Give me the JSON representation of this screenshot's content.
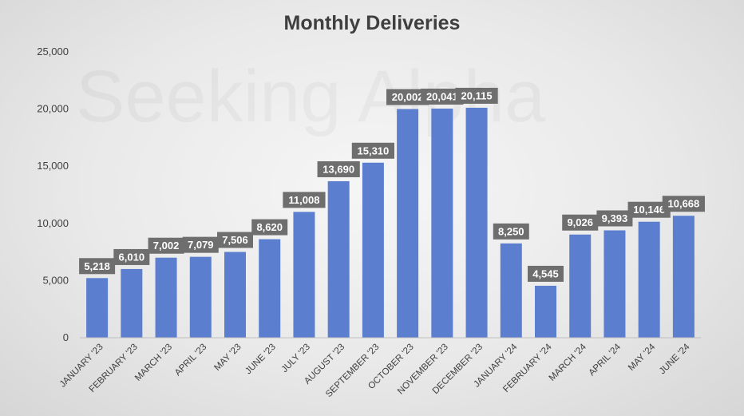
{
  "chart_data": {
    "type": "bar",
    "title": "Monthly Deliveries",
    "xlabel": "",
    "ylabel": "",
    "categories": [
      "JANUARY '23",
      "FEBRUARY '23",
      "MARCH '23",
      "APRIL '23",
      "MAY '23",
      "JUNE '23",
      "JULY '23",
      "AUGUST '23",
      "SEPTEMBER '23",
      "OCTOBER '23",
      "NOVEMBER '23",
      "DECEMBER '23",
      "JANUARY '24",
      "FEBRUARY '24",
      "MARCH '24",
      "APRIL '24",
      "MAY '24",
      "JUNE '24"
    ],
    "values": [
      5218,
      6010,
      7002,
      7079,
      7506,
      8620,
      11008,
      13690,
      15310,
      20002,
      20041,
      20115,
      8250,
      4545,
      9026,
      9393,
      10146,
      10668
    ],
    "data_labels": [
      "5,218",
      "6,010",
      "7,002",
      "7,079",
      "7,506",
      "8,620",
      "11,008",
      "13,690",
      "15,310",
      "20,002",
      "20,041",
      "20,115",
      "8,250",
      "4,545",
      "9,026",
      "9,393",
      "10,146",
      "10,668"
    ],
    "yticks": [
      0,
      5000,
      10000,
      15000,
      20000,
      25000
    ],
    "ytick_labels": [
      "0",
      "5,000",
      "10,000",
      "15,000",
      "20,000",
      "25,000"
    ],
    "ylim": [
      0,
      25000
    ],
    "grid": false,
    "legend": "none",
    "bar_color": "#5b7fce",
    "label_box_color": "#6e6e6e",
    "watermark": "Seeking Alpha"
  }
}
